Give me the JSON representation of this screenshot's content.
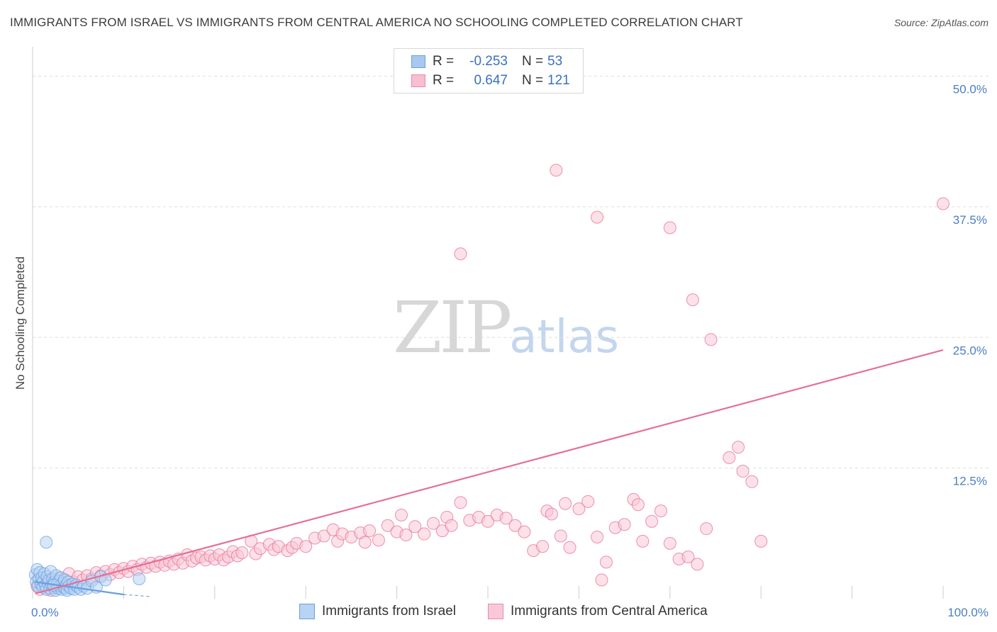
{
  "title": "IMMIGRANTS FROM ISRAEL VS IMMIGRANTS FROM CENTRAL AMERICA NO SCHOOLING COMPLETED CORRELATION CHART",
  "source": "Source: ZipAtlas.com",
  "watermark": {
    "zip": "ZIP",
    "atlas": "atlas"
  },
  "legend": {
    "rows": [
      {
        "r_label": "R =",
        "r_value": "-0.253",
        "n_label": "N =",
        "n_value": "53",
        "color": "#a9c8f0",
        "border": "#6a9fe0"
      },
      {
        "r_label": "R =",
        "r_value": "0.647",
        "n_label": "N =",
        "n_value": "121",
        "color": "#f7bfd0",
        "border": "#e98aa8"
      }
    ]
  },
  "bottom_legend": [
    {
      "label": "Immigrants from Israel",
      "color": "#b8d3f3",
      "border": "#6a9fe0"
    },
    {
      "label": "Immigrants from Central America",
      "color": "#f9c8d6",
      "border": "#e98aa8"
    }
  ],
  "chart_data": {
    "type": "scatter",
    "title": "IMMIGRANTS FROM ISRAEL VS IMMIGRANTS FROM CENTRAL AMERICA NO SCHOOLING COMPLETED CORRELATION CHART",
    "xlabel": "",
    "ylabel": "No Schooling Completed",
    "xlim": [
      0,
      100
    ],
    "ylim": [
      0,
      52
    ],
    "x_tick_labels": [
      "0.0%",
      "100.0%"
    ],
    "y_ticks": [
      12.5,
      25.0,
      37.5,
      50.0
    ],
    "y_tick_labels": [
      "12.5%",
      "25.0%",
      "37.5%",
      "50.0%"
    ],
    "grid": true,
    "legend_position": "top-center",
    "series": [
      {
        "name": "Immigrants from Israel",
        "color": "#6a9fe0",
        "fill": "#b8d3f3",
        "trend": {
          "x": [
            0.3,
            10
          ],
          "y": [
            1.6,
            0.4
          ],
          "dashed_to": [
            13,
            0.2
          ]
        },
        "points": [
          [
            0.3,
            2.3
          ],
          [
            0.4,
            1.6
          ],
          [
            0.5,
            2.8
          ],
          [
            0.6,
            1.2
          ],
          [
            0.7,
            1.9
          ],
          [
            0.8,
            2.5
          ],
          [
            0.9,
            1.4
          ],
          [
            1.0,
            2.0
          ],
          [
            1.1,
            1.1
          ],
          [
            1.2,
            1.7
          ],
          [
            1.3,
            2.4
          ],
          [
            1.4,
            1.3
          ],
          [
            1.5,
            0.9
          ],
          [
            1.6,
            2.1
          ],
          [
            1.7,
            1.5
          ],
          [
            1.8,
            1.8
          ],
          [
            1.9,
            1.0
          ],
          [
            2.0,
            2.6
          ],
          [
            2.1,
            1.3
          ],
          [
            2.2,
            1.9
          ],
          [
            2.3,
            1.1
          ],
          [
            2.4,
            1.6
          ],
          [
            2.5,
            0.8
          ],
          [
            2.6,
            2.2
          ],
          [
            2.7,
            1.4
          ],
          [
            2.8,
            1.0
          ],
          [
            2.9,
            1.7
          ],
          [
            3.0,
            1.2
          ],
          [
            3.1,
            2.0
          ],
          [
            3.2,
            0.9
          ],
          [
            3.3,
            1.5
          ],
          [
            3.4,
            1.1
          ],
          [
            3.5,
            1.8
          ],
          [
            3.6,
            1.0
          ],
          [
            3.7,
            1.3
          ],
          [
            3.8,
            0.8
          ],
          [
            3.9,
            1.6
          ],
          [
            4.0,
            1.2
          ],
          [
            4.2,
            1.0
          ],
          [
            4.4,
            1.4
          ],
          [
            4.6,
            0.9
          ],
          [
            4.8,
            1.3
          ],
          [
            5.0,
            1.1
          ],
          [
            5.3,
            0.9
          ],
          [
            5.6,
            1.2
          ],
          [
            6.0,
            1.0
          ],
          [
            6.5,
            1.7
          ],
          [
            7.0,
            1.1
          ],
          [
            7.5,
            2.1
          ],
          [
            8.0,
            1.8
          ],
          [
            1.5,
            5.4
          ],
          [
            11.7,
            1.9
          ],
          [
            2.3,
            1.3
          ]
        ]
      },
      {
        "name": "Immigrants from Central America",
        "color": "#e56f97",
        "fill": "#f9c8d6",
        "trend": {
          "x": [
            0.3,
            100
          ],
          "y": [
            0.5,
            23.8
          ]
        },
        "points": [
          [
            0.5,
            1.2
          ],
          [
            0.8,
            0.9
          ],
          [
            1.0,
            1.5
          ],
          [
            1.2,
            1.1
          ],
          [
            1.5,
            1.8
          ],
          [
            1.8,
            1.3
          ],
          [
            2.0,
            0.8
          ],
          [
            2.3,
            1.6
          ],
          [
            2.6,
            1.2
          ],
          [
            3.0,
            2.0
          ],
          [
            3.3,
            1.4
          ],
          [
            3.6,
            1.8
          ],
          [
            4.0,
            2.4
          ],
          [
            4.5,
            1.6
          ],
          [
            5.0,
            2.1
          ],
          [
            5.5,
            1.8
          ],
          [
            6.0,
            2.2
          ],
          [
            6.5,
            1.9
          ],
          [
            7.0,
            2.5
          ],
          [
            7.5,
            2.2
          ],
          [
            8.0,
            2.6
          ],
          [
            8.5,
            2.3
          ],
          [
            9.0,
            2.8
          ],
          [
            9.5,
            2.5
          ],
          [
            10.0,
            2.9
          ],
          [
            10.5,
            2.6
          ],
          [
            11.0,
            3.1
          ],
          [
            11.5,
            2.8
          ],
          [
            12.0,
            3.3
          ],
          [
            12.5,
            3.0
          ],
          [
            13.0,
            3.4
          ],
          [
            13.5,
            3.1
          ],
          [
            14.0,
            3.5
          ],
          [
            14.5,
            3.2
          ],
          [
            15.0,
            3.6
          ],
          [
            15.5,
            3.3
          ],
          [
            16.0,
            3.8
          ],
          [
            16.5,
            3.4
          ],
          [
            17.0,
            4.2
          ],
          [
            17.5,
            3.6
          ],
          [
            18.0,
            3.9
          ],
          [
            18.5,
            4.0
          ],
          [
            19.0,
            3.7
          ],
          [
            19.5,
            4.1
          ],
          [
            20.0,
            3.8
          ],
          [
            20.5,
            4.2
          ],
          [
            21.0,
            3.7
          ],
          [
            21.5,
            4.0
          ],
          [
            22.0,
            4.5
          ],
          [
            22.5,
            4.1
          ],
          [
            23.0,
            4.4
          ],
          [
            24.0,
            5.5
          ],
          [
            24.5,
            4.3
          ],
          [
            25.0,
            4.8
          ],
          [
            26.0,
            5.2
          ],
          [
            26.5,
            4.7
          ],
          [
            27.0,
            5.0
          ],
          [
            28.0,
            4.6
          ],
          [
            28.5,
            4.9
          ],
          [
            29.0,
            5.3
          ],
          [
            30.0,
            5.0
          ],
          [
            31.0,
            5.8
          ],
          [
            32.0,
            6.0
          ],
          [
            33.0,
            6.6
          ],
          [
            33.5,
            5.5
          ],
          [
            34.0,
            6.2
          ],
          [
            35.0,
            5.9
          ],
          [
            36.0,
            6.3
          ],
          [
            36.5,
            5.4
          ],
          [
            37.0,
            6.5
          ],
          [
            38.0,
            5.6
          ],
          [
            39.0,
            7.0
          ],
          [
            40.0,
            6.4
          ],
          [
            40.5,
            8.0
          ],
          [
            41.0,
            6.1
          ],
          [
            42.0,
            6.9
          ],
          [
            43.0,
            6.2
          ],
          [
            44.0,
            7.2
          ],
          [
            45.0,
            6.5
          ],
          [
            45.5,
            7.8
          ],
          [
            46.0,
            7.0
          ],
          [
            47.0,
            9.2
          ],
          [
            48.0,
            7.5
          ],
          [
            49.0,
            7.8
          ],
          [
            50.0,
            7.4
          ],
          [
            51.0,
            8.0
          ],
          [
            52.0,
            7.7
          ],
          [
            53.0,
            7.0
          ],
          [
            54.0,
            6.4
          ],
          [
            55.0,
            4.6
          ],
          [
            56.0,
            5.0
          ],
          [
            56.5,
            8.4
          ],
          [
            57.0,
            8.1
          ],
          [
            58.0,
            6.0
          ],
          [
            58.5,
            9.1
          ],
          [
            59.0,
            4.9
          ],
          [
            60.0,
            8.6
          ],
          [
            61.0,
            9.3
          ],
          [
            62.0,
            5.9
          ],
          [
            63.0,
            3.5
          ],
          [
            64.0,
            6.8
          ],
          [
            65.0,
            7.1
          ],
          [
            66.0,
            9.5
          ],
          [
            66.5,
            9.0
          ],
          [
            67.0,
            5.5
          ],
          [
            68.0,
            7.4
          ],
          [
            69.0,
            8.4
          ],
          [
            70.0,
            5.3
          ],
          [
            71.0,
            3.8
          ],
          [
            72.0,
            4.0
          ],
          [
            73.0,
            3.3
          ],
          [
            74.0,
            6.7
          ],
          [
            62.5,
            1.8
          ],
          [
            47.0,
            33.0
          ],
          [
            57.5,
            41.0
          ],
          [
            62.0,
            36.5
          ],
          [
            70.0,
            35.5
          ],
          [
            72.5,
            28.6
          ],
          [
            74.5,
            24.8
          ],
          [
            76.5,
            13.5
          ],
          [
            77.5,
            14.5
          ],
          [
            78.0,
            12.2
          ],
          [
            79.0,
            11.2
          ],
          [
            80.0,
            5.5
          ],
          [
            100.0,
            37.8
          ]
        ]
      }
    ]
  }
}
